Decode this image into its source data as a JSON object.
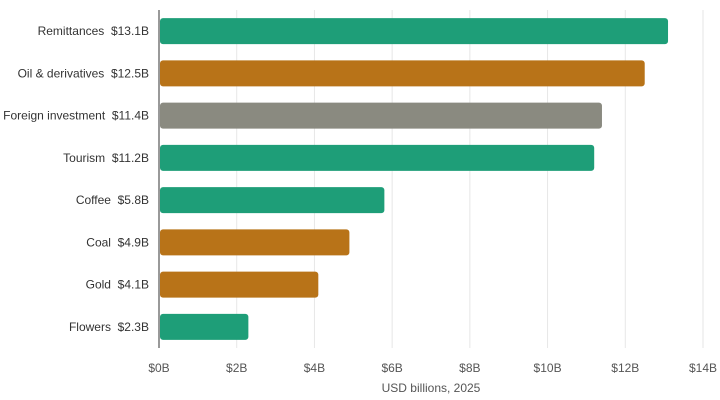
{
  "chart_data": {
    "type": "bar",
    "orientation": "horizontal",
    "categories": [
      "Remittances",
      "Oil & derivatives",
      "Foreign investment",
      "Tourism",
      "Coffee",
      "Coal",
      "Gold",
      "Flowers"
    ],
    "values": [
      13.1,
      12.5,
      11.4,
      11.2,
      5.8,
      4.9,
      4.1,
      2.3
    ],
    "value_labels": [
      "$13.1B",
      "$12.5B",
      "$11.4B",
      "$11.2B",
      "$5.8B",
      "$4.9B",
      "$4.1B",
      "$2.3B"
    ],
    "bar_colors": [
      "#1e9e78",
      "#b87318",
      "#8a8a80",
      "#1e9e78",
      "#1e9e78",
      "#b87318",
      "#b87318",
      "#1e9e78"
    ],
    "xlabel": "USD billions, 2025",
    "xlim": [
      0,
      14
    ],
    "xticks": [
      0,
      2,
      4,
      6,
      8,
      10,
      12,
      14
    ],
    "xtick_labels": [
      "$0B",
      "$2B",
      "$4B",
      "$6B",
      "$8B",
      "$10B",
      "$12B",
      "$14B"
    ],
    "grid": true
  },
  "colors": {
    "grid": "#e6e6e6",
    "axis": "#333333"
  }
}
